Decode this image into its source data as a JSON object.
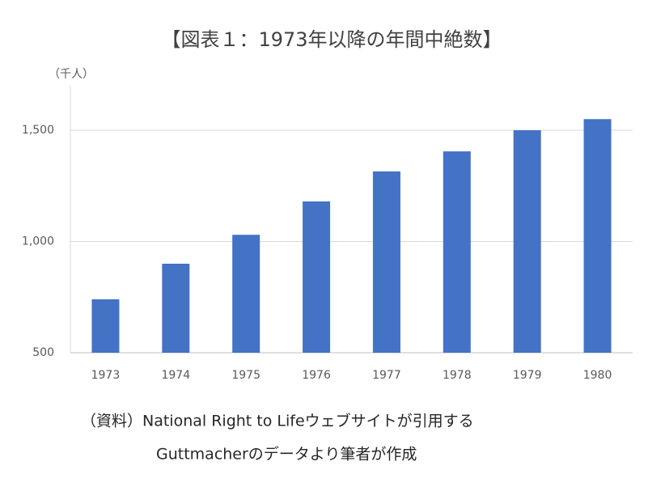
{
  "chart_data": {
    "type": "bar",
    "title": "【図表１：1973年以降の年間中絶数】",
    "y_label": "（千人）",
    "categories": [
      "1973",
      "1974",
      "1975",
      "1976",
      "1977",
      "1978",
      "1979",
      "1980"
    ],
    "values": [
      740,
      900,
      1030,
      1180,
      1315,
      1405,
      1500,
      1550
    ],
    "color": "#4472c4",
    "ylim": [
      500,
      1700
    ],
    "yticks": [
      500,
      {
        "value": 1000,
        "label": "1,000"
      },
      {
        "value": 1500,
        "label": "1,500"
      }
    ],
    "grid": true,
    "notes": [
      "（資料）National Right to Lifeウェブサイトが引用する",
      "Guttmacherのデータより筆者が作成"
    ]
  }
}
